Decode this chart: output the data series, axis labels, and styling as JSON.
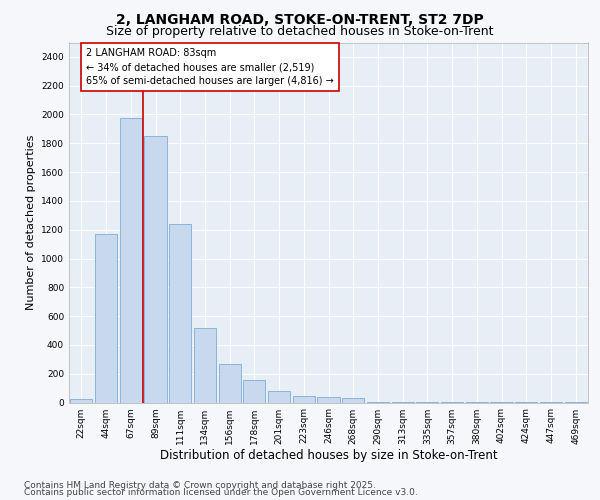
{
  "title1": "2, LANGHAM ROAD, STOKE-ON-TRENT, ST2 7DP",
  "title2": "Size of property relative to detached houses in Stoke-on-Trent",
  "xlabel": "Distribution of detached houses by size in Stoke-on-Trent",
  "ylabel": "Number of detached properties",
  "categories": [
    "22sqm",
    "44sqm",
    "67sqm",
    "89sqm",
    "111sqm",
    "134sqm",
    "156sqm",
    "178sqm",
    "201sqm",
    "223sqm",
    "246sqm",
    "268sqm",
    "290sqm",
    "313sqm",
    "335sqm",
    "357sqm",
    "380sqm",
    "402sqm",
    "424sqm",
    "447sqm",
    "469sqm"
  ],
  "values": [
    25,
    1170,
    1975,
    1850,
    1240,
    520,
    270,
    155,
    80,
    45,
    35,
    30,
    5,
    2,
    2,
    2,
    2,
    2,
    2,
    2,
    2
  ],
  "bar_color": "#c8d8ee",
  "bar_edge_color": "#7bafd4",
  "vline_color": "#cc0000",
  "vline_x": 2.5,
  "annotation_text": "2 LANGHAM ROAD: 83sqm\n← 34% of detached houses are smaller (2,519)\n65% of semi-detached houses are larger (4,816) →",
  "annotation_box_facecolor": "#ffffff",
  "annotation_box_edgecolor": "#cc0000",
  "ylim": [
    0,
    2500
  ],
  "yticks": [
    0,
    200,
    400,
    600,
    800,
    1000,
    1200,
    1400,
    1600,
    1800,
    2000,
    2200,
    2400
  ],
  "plot_bg_color": "#e8eef6",
  "fig_bg_color": "#f5f7fa",
  "footer1": "Contains HM Land Registry data © Crown copyright and database right 2025.",
  "footer2": "Contains public sector information licensed under the Open Government Licence v3.0.",
  "title1_fontsize": 10,
  "title2_fontsize": 9,
  "xlabel_fontsize": 8.5,
  "ylabel_fontsize": 8,
  "tick_fontsize": 6.5,
  "annotation_fontsize": 7,
  "footer_fontsize": 6.5
}
